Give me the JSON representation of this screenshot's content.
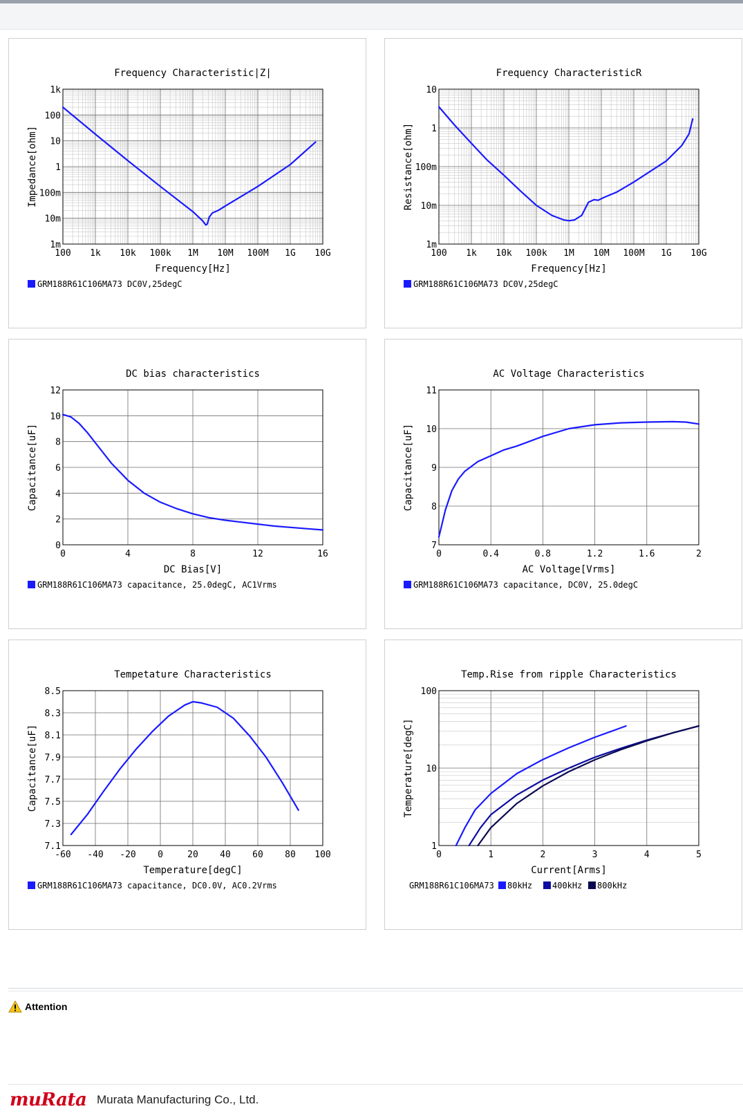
{
  "charts_meta": {
    "part": "GRM188R61C106MA73"
  },
  "chart_data": [
    {
      "id": "impedance",
      "type": "line",
      "scale": "loglog",
      "title": "Frequency  Characteristic|Z|",
      "xlabel": "Frequency[Hz]",
      "ylabel": "Impedance[ohm]",
      "xlim": [
        100,
        10000000000
      ],
      "ylim": [
        0.001,
        1000
      ],
      "xticks": [
        "100",
        "1k",
        "10k",
        "100k",
        "1M",
        "10M",
        "100M",
        "1G",
        "10G"
      ],
      "yticks": [
        "1m",
        "10m",
        "100m",
        "1",
        "10",
        "100",
        "1k"
      ],
      "legend": "GRM188R61C106MA73 DC0V,25degC",
      "series": [
        {
          "color": "#1a1aff",
          "x": [
            100,
            1000,
            10000,
            100000,
            1000000,
            2000000,
            2500000,
            2800000,
            3200000,
            4000000,
            6000000,
            10000000,
            100000000,
            1000000000,
            6000000000
          ],
          "y": [
            200,
            18,
            1.7,
            0.17,
            0.018,
            0.008,
            0.0055,
            0.006,
            0.011,
            0.016,
            0.02,
            0.03,
            0.17,
            1.2,
            9
          ]
        }
      ]
    },
    {
      "id": "resistance",
      "type": "line",
      "scale": "loglog",
      "title": "Frequency  CharacteristicR",
      "xlabel": "Frequency[Hz]",
      "ylabel": "Resistance[ohm]",
      "xlim": [
        100,
        10000000000
      ],
      "ylim": [
        0.001,
        10
      ],
      "xticks": [
        "100",
        "1k",
        "10k",
        "100k",
        "1M",
        "10M",
        "100M",
        "1G",
        "10G"
      ],
      "yticks": [
        "1m",
        "10m",
        "100m",
        "1",
        "10"
      ],
      "legend": "GRM188R61C106MA73 DC0V,25degC",
      "series": [
        {
          "color": "#1a1aff",
          "x": [
            100,
            300,
            1000,
            3000,
            10000,
            30000,
            100000,
            300000,
            700000,
            1000000,
            1500000,
            2500000,
            4000000,
            6000000,
            8000000,
            12000000,
            30000000,
            100000000,
            1000000000,
            3000000000,
            5000000000,
            6500000000
          ],
          "y": [
            3.5,
            1.2,
            0.4,
            0.15,
            0.06,
            0.025,
            0.01,
            0.0055,
            0.0042,
            0.004,
            0.0042,
            0.0055,
            0.012,
            0.014,
            0.0135,
            0.016,
            0.022,
            0.04,
            0.14,
            0.35,
            0.7,
            1.7
          ]
        }
      ]
    },
    {
      "id": "dcbias",
      "type": "line",
      "scale": "linear",
      "title": "DC bias characteristics",
      "xlabel": "DC Bias[V]",
      "ylabel": "Capacitance[uF]",
      "xlim": [
        0,
        16
      ],
      "ylim": [
        0,
        12
      ],
      "xticks": [
        "0",
        "4",
        "8",
        "12",
        "16"
      ],
      "yticks": [
        "0",
        "2",
        "4",
        "6",
        "8",
        "10",
        "12"
      ],
      "legend": "GRM188R61C106MA73 capacitance, 25.0degC, AC1Vrms",
      "series": [
        {
          "color": "#1a1aff",
          "x": [
            0,
            0.5,
            1,
            1.5,
            2,
            3,
            4,
            5,
            6,
            7,
            8,
            9,
            10,
            11,
            12,
            13,
            14,
            15,
            16
          ],
          "y": [
            10.1,
            9.9,
            9.4,
            8.7,
            7.9,
            6.3,
            5.0,
            4.0,
            3.3,
            2.8,
            2.4,
            2.1,
            1.9,
            1.75,
            1.6,
            1.45,
            1.35,
            1.25,
            1.15
          ]
        }
      ]
    },
    {
      "id": "acvoltage",
      "type": "line",
      "scale": "linear",
      "title": "AC Voltage Characteristics",
      "xlabel": "AC Voltage[Vrms]",
      "ylabel": "Capacitance[uF]",
      "xlim": [
        0,
        2
      ],
      "ylim": [
        7,
        11
      ],
      "xticks": [
        "0",
        "0.4",
        "0.8",
        "1.2",
        "1.6",
        "2"
      ],
      "yticks": [
        "7",
        "8",
        "9",
        "10",
        "11"
      ],
      "legend": "GRM188R61C106MA73 capacitance, DC0V, 25.0degC",
      "series": [
        {
          "color": "#1a1aff",
          "x": [
            0,
            0.05,
            0.1,
            0.15,
            0.2,
            0.3,
            0.4,
            0.5,
            0.6,
            0.8,
            1.0,
            1.2,
            1.4,
            1.6,
            1.8,
            1.9,
            2.0
          ],
          "y": [
            7.2,
            7.9,
            8.4,
            8.7,
            8.9,
            9.15,
            9.3,
            9.45,
            9.55,
            9.8,
            10.0,
            10.1,
            10.15,
            10.17,
            10.18,
            10.17,
            10.12
          ]
        }
      ]
    },
    {
      "id": "temperature",
      "type": "line",
      "scale": "linear",
      "title": "Tempetature  Characteristics",
      "xlabel": "Temperature[degC]",
      "ylabel": "Capacitance[uF]",
      "xlim": [
        -60,
        100
      ],
      "ylim": [
        7.1,
        8.5
      ],
      "xticks": [
        "-60",
        "-40",
        "-20",
        "0",
        "20",
        "40",
        "60",
        "80",
        "100"
      ],
      "yticks": [
        "7.1",
        "7.3",
        "7.5",
        "7.7",
        "7.9",
        "8.1",
        "8.3",
        "8.5"
      ],
      "legend": "GRM188R61C106MA73 capacitance, DC0.0V, AC0.2Vrms",
      "series": [
        {
          "color": "#1a1aff",
          "x": [
            -55,
            -45,
            -35,
            -25,
            -15,
            -5,
            5,
            15,
            20,
            25,
            35,
            45,
            55,
            65,
            75,
            85
          ],
          "y": [
            7.2,
            7.38,
            7.59,
            7.79,
            7.97,
            8.13,
            8.27,
            8.37,
            8.4,
            8.39,
            8.35,
            8.25,
            8.09,
            7.9,
            7.67,
            7.42
          ]
        }
      ]
    },
    {
      "id": "ripple",
      "type": "line",
      "scale": "semilogy",
      "title": "Temp.Rise from ripple Characteristics",
      "xlabel": "Current[Arms]",
      "ylabel": "Temperature[degC]",
      "xlim": [
        0,
        5
      ],
      "ylim": [
        1,
        100
      ],
      "xticks": [
        "0",
        "1",
        "2",
        "3",
        "4",
        "5"
      ],
      "yticks": [
        "1",
        "10",
        "100"
      ],
      "legend_prefix": "GRM188R61C106MA73",
      "series": [
        {
          "name": "80kHz",
          "color": "#1a1aff",
          "x": [
            0.33,
            0.5,
            0.7,
            1.0,
            1.5,
            2.0,
            2.5,
            3.0,
            3.6
          ],
          "y": [
            1.0,
            1.7,
            2.9,
            4.7,
            8.5,
            12.9,
            18.3,
            25,
            35
          ]
        },
        {
          "name": "400kHz",
          "color": "#0c0ca0",
          "x": [
            0.58,
            0.8,
            1.0,
            1.5,
            2.0,
            2.5,
            3.0,
            3.5,
            4.0,
            4.5,
            5.0
          ],
          "y": [
            1.0,
            1.7,
            2.5,
            4.5,
            7.0,
            10.0,
            13.8,
            18.0,
            23.0,
            28.5,
            35
          ]
        },
        {
          "name": "800kHz",
          "color": "#0a0a50",
          "x": [
            0.75,
            1.0,
            1.5,
            2.0,
            2.5,
            3.0,
            3.5,
            4.0,
            4.5,
            5.0
          ],
          "y": [
            1.0,
            1.7,
            3.5,
            5.9,
            9.0,
            12.8,
            17.3,
            22.5,
            28.5,
            35
          ]
        }
      ]
    }
  ],
  "attention": {
    "label": "Attention"
  },
  "footer": {
    "logo": "muRata",
    "company": "Murata Manufacturing Co., Ltd."
  }
}
